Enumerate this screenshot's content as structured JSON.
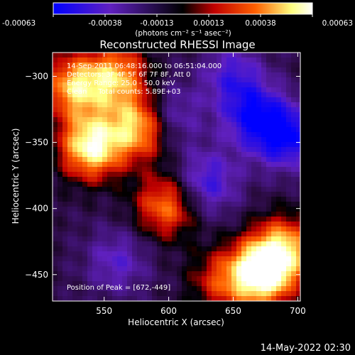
{
  "chart_data": {
    "type": "heatmap",
    "title": "Reconstructed RHESSI Image",
    "xlabel": "Heliocentric X (arcsec)",
    "ylabel": "Heliocentric Y (arcsec)",
    "xlim": [
      510,
      702
    ],
    "ylim": [
      -470,
      -282
    ],
    "x_ticks": [
      550,
      600,
      650,
      700
    ],
    "y_ticks": [
      -300,
      -350,
      -400,
      -450
    ],
    "colorbar": {
      "ticks": [
        "-0.00063",
        "-0.00038",
        "-0.00013",
        "0.00013",
        "0.00038",
        "0.00063"
      ],
      "range": [
        -0.00063,
        0.00063
      ],
      "units": "(photons cm⁻² s⁻¹ asec⁻²)",
      "colors": [
        "#0000ff",
        "#6020c0",
        "#000000",
        "#c00000",
        "#ff6000",
        "#ffff80",
        "#ffffff"
      ]
    },
    "annotations": [
      "14-Sep-2011 06:48:16.000 to 06:51:04.000",
      "Detectors: 3F 4F 5F 6F 7F 8F, Att 0",
      "Energy Range: 25.0 - 50.0 keV",
      "Clean     Total counts: 5.89E+03"
    ],
    "peak_label": "Position of Peak = [672,-449]",
    "peak_position": [
      672,
      -449
    ],
    "sources": [
      {
        "x": 540,
        "y": -353,
        "amp": 0.0007
      },
      {
        "x": 578,
        "y": -338,
        "amp": 0.0006
      },
      {
        "x": 527,
        "y": -308,
        "amp": 0.00055
      },
      {
        "x": 560,
        "y": -300,
        "amp": 0.0005
      },
      {
        "x": 598,
        "y": -398,
        "amp": 0.00045
      },
      {
        "x": 672,
        "y": -449,
        "amp": 0.0008
      },
      {
        "x": 690,
        "y": -430,
        "amp": 0.0005
      },
      {
        "x": 640,
        "y": -455,
        "amp": 0.0003
      },
      {
        "x": 665,
        "y": -330,
        "amp": -0.0004
      },
      {
        "x": 690,
        "y": -345,
        "amp": -0.0005
      },
      {
        "x": 630,
        "y": -380,
        "amp": -0.00035
      },
      {
        "x": 600,
        "y": -330,
        "amp": -0.0003
      },
      {
        "x": 560,
        "y": -440,
        "amp": -0.00025
      },
      {
        "x": 650,
        "y": -300,
        "amp": -0.0003
      }
    ]
  },
  "footer": {
    "timestamp": "14-May-2022 02:30"
  }
}
